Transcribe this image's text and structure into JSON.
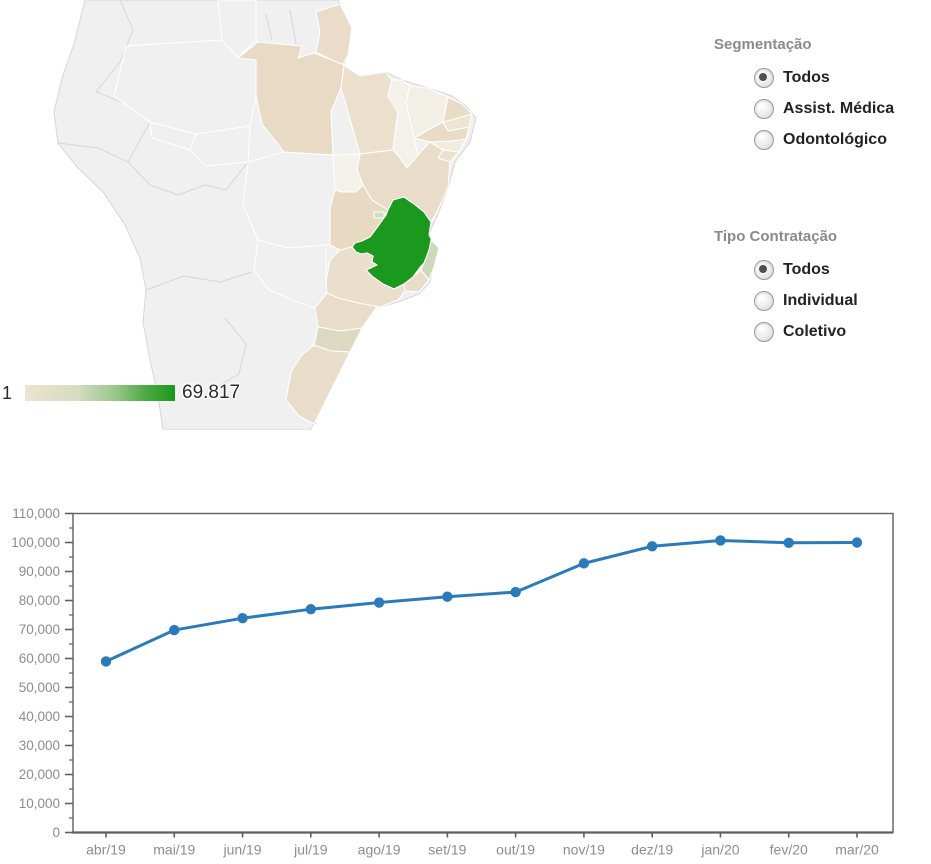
{
  "map": {
    "highlighted_state": "Minas Gerais",
    "legend": {
      "min_label": "1",
      "max_label": "69.817"
    },
    "legend_gradient": [
      "#ece3d1",
      "#d5dcc1",
      "#9cc68a",
      "#4faa43",
      "#18991b"
    ],
    "colors": {
      "country": "#f0f0f0",
      "country_border": "#dadada",
      "state_border": "#ffffff",
      "landmass_border": "#d6d6d6"
    },
    "state_fills": {
      "roraima": "#f0f0f0",
      "amazonas": "#f0f0f0",
      "acre": "#f0f0f0",
      "rondonia": "#f0f0f0",
      "matogrosso": "#f0f0f0",
      "matogrossodosul": "#f0f0f0",
      "amapa": "#eadcc8",
      "para": "#e8dac4",
      "maranhao": "#ecdfcc",
      "piaui": "#f3f1e9",
      "ceara": "#f2efe7",
      "rn": "#e9dcc6",
      "pb": "#eee4d3",
      "pe": "#e9dcc6",
      "al": "#f1ece0",
      "se": "#ece1cf",
      "bahia": "#e9dcc8",
      "tocantins": "#f4f2ea",
      "goias": "#e7d9c2",
      "df": "#cfddc2",
      "mg": "#1a991e",
      "es": "#ccd9bd",
      "rj": "#e9dcc8",
      "sp": "#eadfcc",
      "parana": "#e9dcc8",
      "sc": "#dbd9c1",
      "rs": "#e9ddc9"
    }
  },
  "controls": {
    "segmentation": {
      "title": "Segmentação",
      "options": [
        {
          "label": "Todos",
          "selected": true
        },
        {
          "label": "Assist. Médica",
          "selected": false
        },
        {
          "label": "Odontológico",
          "selected": false
        }
      ]
    },
    "contract_type": {
      "title": "Tipo Contratação",
      "options": [
        {
          "label": "Todos",
          "selected": true
        },
        {
          "label": "Individual",
          "selected": false
        },
        {
          "label": "Coletivo",
          "selected": false
        }
      ]
    }
  },
  "chart_data": {
    "type": "line",
    "categories": [
      "abr/19",
      "mai/19",
      "jun/19",
      "jul/19",
      "ago/19",
      "set/19",
      "out/19",
      "nov/19",
      "dez/19",
      "jan/20",
      "fev/20",
      "mar/20"
    ],
    "values": [
      59000,
      69800,
      73900,
      77000,
      79300,
      81300,
      82900,
      92800,
      98700,
      100700,
      99900,
      100000
    ],
    "title": "",
    "xlabel": "",
    "ylabel": "",
    "ylim": [
      0,
      110000
    ],
    "ytick_step": 10000,
    "yminor_step": 5000,
    "grid": false,
    "legend_position": "none",
    "line_color": "#2b7bba",
    "marker": "circle",
    "axis_color": "#5f5f5f",
    "tick_label_color": "#8c8c8c"
  }
}
